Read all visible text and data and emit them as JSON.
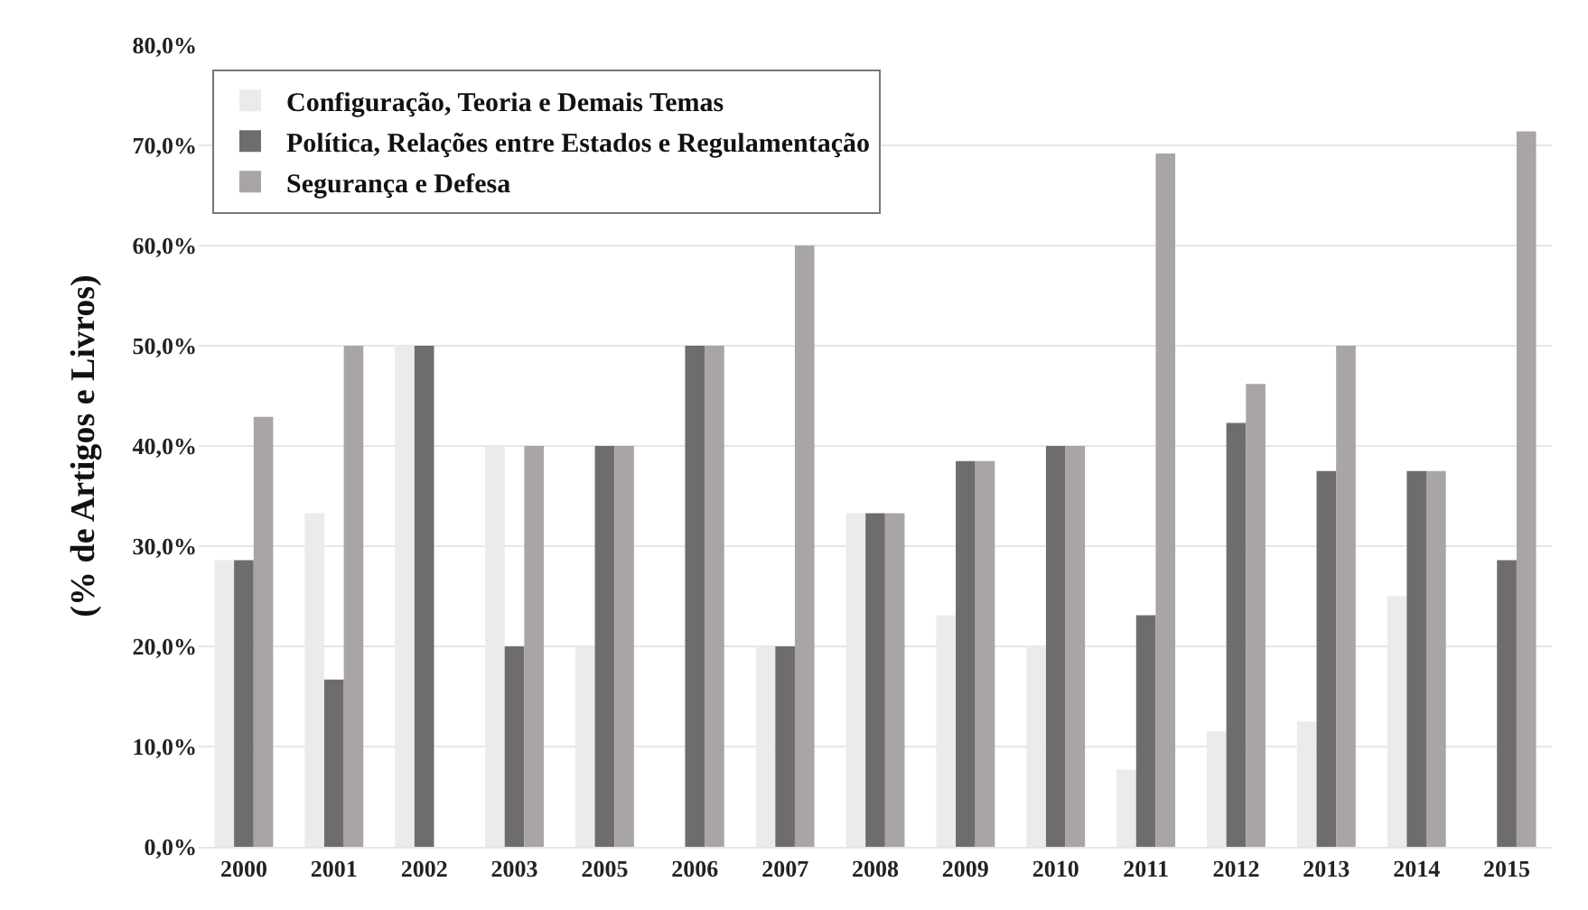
{
  "chart_data": {
    "type": "bar",
    "ylabel": "(% de Artigos e Livros)",
    "categories": [
      "2000",
      "2001",
      "2002",
      "2003",
      "2005",
      "2006",
      "2007",
      "2008",
      "2009",
      "2010",
      "2011",
      "2012",
      "2013",
      "2014",
      "2015"
    ],
    "series": [
      {
        "name": "Configuração, Teoria e Demais Temas",
        "color": "#ebebeb",
        "values": [
          28.6,
          33.3,
          50,
          40,
          20,
          0,
          20,
          33.3,
          23.1,
          20,
          7.7,
          11.5,
          12.5,
          25,
          0
        ]
      },
      {
        "name": "Política, Relações entre Estados e Regulamentação",
        "color": "#6e6c6d",
        "values": [
          28.6,
          16.7,
          50,
          20,
          40,
          50,
          20,
          33.3,
          38.5,
          40,
          23.1,
          42.3,
          37.5,
          37.5,
          28.6
        ]
      },
      {
        "name": "Segurança e Defesa",
        "color": "#aaa5a5",
        "values": [
          42.9,
          50,
          0,
          40,
          40,
          50,
          60,
          33.3,
          38.5,
          40,
          69.2,
          46.2,
          50,
          37.5,
          71.4
        ]
      }
    ],
    "ylim": [
      0,
      80
    ],
    "yticks": [
      {
        "value": 0,
        "label": "0,0%"
      },
      {
        "value": 10,
        "label": "10,0%"
      },
      {
        "value": 20,
        "label": "20,0%"
      },
      {
        "value": 30,
        "label": "30,0%"
      },
      {
        "value": 40,
        "label": "40,0%"
      },
      {
        "value": 50,
        "label": "50,0%"
      },
      {
        "value": 60,
        "label": "60,0%"
      },
      {
        "value": 70,
        "label": "70,0%"
      },
      {
        "value": 80,
        "label": "80,0%"
      }
    ],
    "grid": "y",
    "legend": "top left"
  }
}
